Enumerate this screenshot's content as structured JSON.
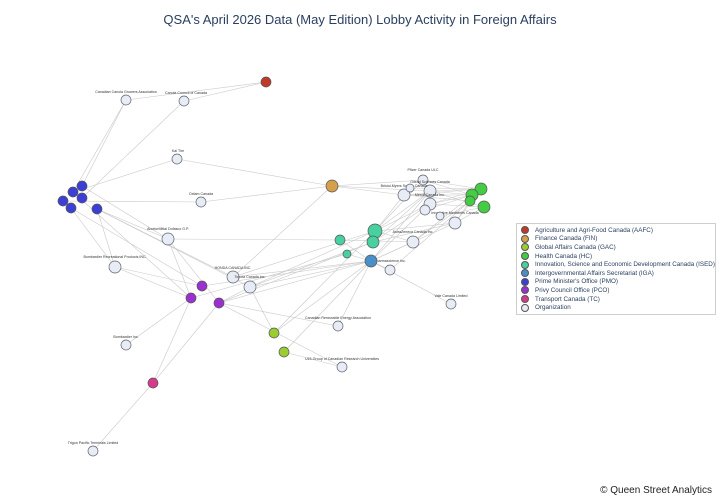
{
  "title": "QSA's April 2026 Data (May Edition) Lobby Activity in Foreign Affairs",
  "copyright": "© Queen Street Analytics",
  "legend": [
    {
      "name": "Agriculture and Agri-Food Canada (AAFC)",
      "color": "#c0392b"
    },
    {
      "name": "Finance Canada (FIN)",
      "color": "#d4a04c"
    },
    {
      "name": "Global Affairs Canada (GAC)",
      "color": "#9acd32"
    },
    {
      "name": "Health Canada (HC)",
      "color": "#44cc44"
    },
    {
      "name": "Innovation, Science and Economic Development Canada (ISED)",
      "color": "#48d1a0"
    },
    {
      "name": "Intergovernmental Affairs Secretariat (IGA)",
      "color": "#4a90c8"
    },
    {
      "name": "Prime Minister's Office (PMO)",
      "color": "#3b3fd6"
    },
    {
      "name": "Privy Council Office (PCO)",
      "color": "#9b30d0"
    },
    {
      "name": "Transport Canada (TC)",
      "color": "#d63a8a"
    },
    {
      "name": "Organization",
      "color": "#e8ecf4"
    }
  ],
  "organizations": [
    "Canadian Canola Growers Association",
    "Canola Council of Canada",
    "Kai Tire",
    "Oxfam Canada",
    "ArcelorMittal Dofasco G.P.",
    "Bombardier Recreational Products INC.",
    "HONDA CANADA INC.",
    "Toyota Canada Inc.",
    "Bombardier Inc.",
    "Canadian Renewable Energy Association",
    "U15-Group of Canadian Research Universities",
    "Trigon Pacific Terminals Limited",
    "Pfizer Canada ULC",
    "Gilead Sciences Canada",
    "Bristol-Myers Squibb Canada",
    "Merck Canada Inc.",
    "Innovative Medicines Canada",
    "AstraZeneca Canada Inc.",
    "Pharmascience Inc.",
    "Vale Canada Limited"
  ]
}
